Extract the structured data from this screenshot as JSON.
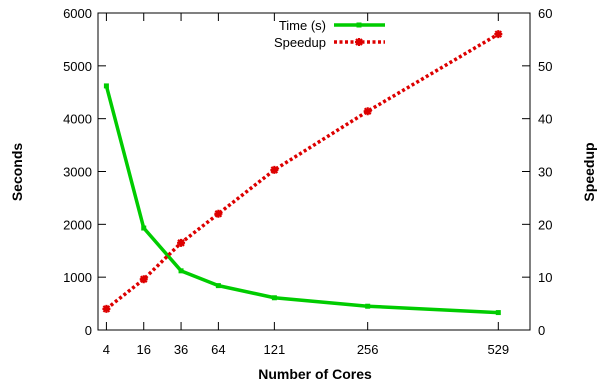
{
  "chart_data": {
    "type": "line",
    "title": "",
    "xlabel": "Number of Cores",
    "ylabel": "Seconds",
    "y2label": "Speedup",
    "x_scale": "sqrt",
    "categories": [
      "4",
      "16",
      "36",
      "64",
      "121",
      "256",
      "529"
    ],
    "x": [
      4,
      16,
      36,
      64,
      121,
      256,
      529
    ],
    "ylim": [
      0,
      6000
    ],
    "y2lim": [
      0,
      60
    ],
    "yticks": [
      "0",
      "1000",
      "2000",
      "3000",
      "4000",
      "5000",
      "6000"
    ],
    "y2ticks": [
      "0",
      "10",
      "20",
      "30",
      "40",
      "50",
      "60"
    ],
    "grid": false,
    "legend_position": "top-center",
    "series": [
      {
        "name": "Time (s)",
        "axis": "left",
        "color": "#00cc00",
        "style": "solid",
        "marker": "square",
        "values": [
          4620,
          1930,
          1120,
          840,
          610,
          450,
          330
        ]
      },
      {
        "name": "Speedup",
        "axis": "right",
        "color": "#dd0000",
        "style": "dotted",
        "marker": "star",
        "values": [
          4,
          9.6,
          16.5,
          22,
          30.3,
          41.4,
          56
        ]
      }
    ]
  }
}
